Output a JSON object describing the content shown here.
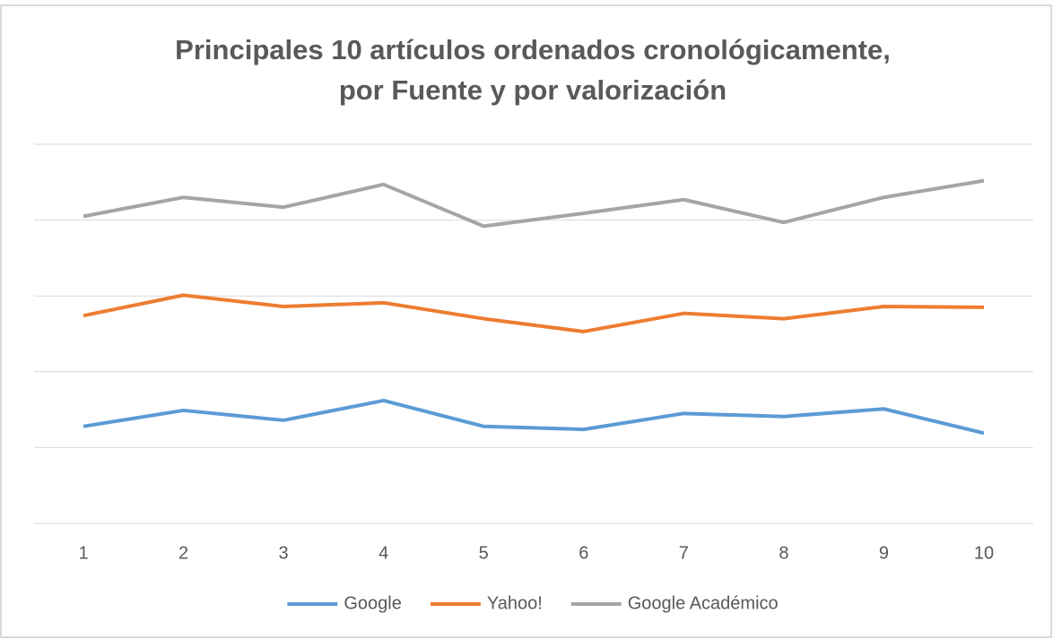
{
  "chart_data": {
    "type": "line",
    "title": [
      "Principales 10 artículos ordenados cronológicamente,",
      "por Fuente y por valorización"
    ],
    "categories": [
      "1",
      "2",
      "3",
      "4",
      "5",
      "6",
      "7",
      "8",
      "9",
      "10"
    ],
    "series": [
      {
        "name": "Google",
        "color": "#5b9bd5",
        "values": [
          1.28,
          1.49,
          1.36,
          1.62,
          1.28,
          1.24,
          1.45,
          1.41,
          1.51,
          1.19
        ]
      },
      {
        "name": "Yahoo!",
        "color": "#ed7d31",
        "values": [
          2.74,
          3.01,
          2.86,
          2.91,
          2.7,
          2.53,
          2.77,
          2.7,
          2.86,
          2.85
        ]
      },
      {
        "name": "Google Académico",
        "color": "#a5a5a5",
        "values": [
          4.05,
          4.3,
          4.17,
          4.47,
          3.92,
          4.09,
          4.27,
          3.97,
          4.3,
          4.52
        ]
      }
    ],
    "ylim": [
      0,
      5
    ],
    "yticks": [
      0,
      1,
      2,
      3,
      4,
      5
    ],
    "grid": true,
    "legend": "bottom"
  }
}
